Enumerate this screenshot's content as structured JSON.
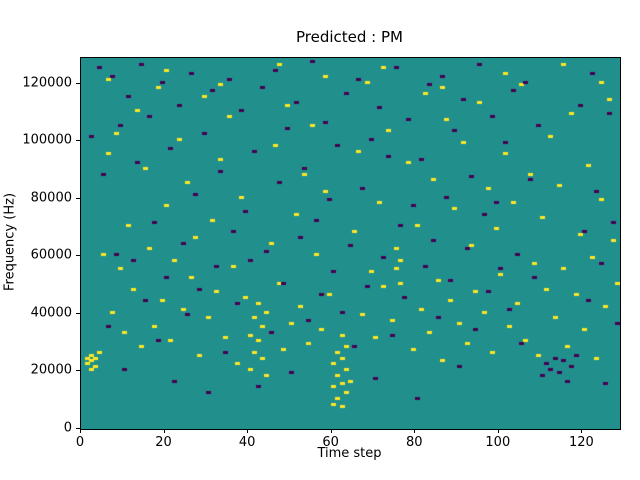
{
  "chart_data": {
    "type": "heatmap",
    "title": "Predicted : PM",
    "xlabel": "Time step",
    "ylabel": "Frequency (Hz)",
    "x_range": [
      0,
      129
    ],
    "y_range": [
      0,
      129000
    ],
    "x_ticks": [
      0,
      20,
      40,
      60,
      80,
      100,
      120
    ],
    "y_ticks": [
      0,
      20000,
      40000,
      60000,
      80000,
      100000,
      120000
    ],
    "legend": "none",
    "grid": false,
    "colors": {
      "background": "#21908c",
      "high": "#fde725",
      "low": "#440154"
    },
    "cell_size": {
      "time_steps": 1,
      "hz": 1000
    },
    "cells_yellow": [
      [
        1,
        22
      ],
      [
        2,
        23
      ],
      [
        2,
        25
      ],
      [
        3,
        21
      ],
      [
        3,
        24
      ],
      [
        4,
        26
      ],
      [
        2,
        20
      ],
      [
        1,
        24
      ],
      [
        5,
        60
      ],
      [
        6,
        95
      ],
      [
        7,
        40
      ],
      [
        8,
        102
      ],
      [
        9,
        55
      ],
      [
        10,
        33
      ],
      [
        11,
        70
      ],
      [
        12,
        48
      ],
      [
        13,
        110
      ],
      [
        14,
        28
      ],
      [
        15,
        90
      ],
      [
        16,
        62
      ],
      [
        17,
        35
      ],
      [
        18,
        118
      ],
      [
        19,
        44
      ],
      [
        20,
        77
      ],
      [
        21,
        30
      ],
      [
        22,
        58
      ],
      [
        23,
        100
      ],
      [
        24,
        41
      ],
      [
        25,
        85
      ],
      [
        26,
        52
      ],
      [
        27,
        66
      ],
      [
        28,
        25
      ],
      [
        29,
        115
      ],
      [
        30,
        38
      ],
      [
        31,
        72
      ],
      [
        32,
        47
      ],
      [
        33,
        93
      ],
      [
        34,
        31
      ],
      [
        35,
        108
      ],
      [
        36,
        56
      ],
      [
        37,
        22
      ],
      [
        38,
        80
      ],
      [
        39,
        45
      ],
      [
        40,
        20
      ],
      [
        40,
        32
      ],
      [
        41,
        26
      ],
      [
        41,
        38
      ],
      [
        42,
        30
      ],
      [
        42,
        43
      ],
      [
        43,
        24
      ],
      [
        43,
        35
      ],
      [
        44,
        40
      ],
      [
        44,
        18
      ],
      [
        45,
        64
      ],
      [
        46,
        98
      ],
      [
        47,
        50
      ],
      [
        48,
        27
      ],
      [
        49,
        112
      ],
      [
        50,
        36
      ],
      [
        51,
        74
      ],
      [
        52,
        42
      ],
      [
        53,
        88
      ],
      [
        54,
        29
      ],
      [
        55,
        105
      ],
      [
        56,
        60
      ],
      [
        57,
        34
      ],
      [
        58,
        82
      ],
      [
        59,
        46
      ],
      [
        60,
        8
      ],
      [
        60,
        14
      ],
      [
        60,
        22
      ],
      [
        61,
        10
      ],
      [
        61,
        18
      ],
      [
        61,
        26
      ],
      [
        62,
        7
      ],
      [
        62,
        15
      ],
      [
        62,
        24
      ],
      [
        62,
        32
      ],
      [
        63,
        12
      ],
      [
        63,
        20
      ],
      [
        63,
        28
      ],
      [
        64,
        16
      ],
      [
        65,
        68
      ],
      [
        66,
        96
      ],
      [
        67,
        39
      ],
      [
        68,
        120
      ],
      [
        69,
        54
      ],
      [
        70,
        31
      ],
      [
        71,
        78
      ],
      [
        72,
        49
      ],
      [
        73,
        103
      ],
      [
        74,
        37
      ],
      [
        75,
        62
      ],
      [
        75,
        55
      ],
      [
        76,
        58
      ],
      [
        76,
        50
      ],
      [
        77,
        45
      ],
      [
        78,
        92
      ],
      [
        79,
        27
      ],
      [
        80,
        70
      ],
      [
        81,
        41
      ],
      [
        82,
        116
      ],
      [
        83,
        33
      ],
      [
        84,
        86
      ],
      [
        85,
        51
      ],
      [
        86,
        23
      ],
      [
        87,
        107
      ],
      [
        88,
        44
      ],
      [
        89,
        76
      ],
      [
        90,
        36
      ],
      [
        91,
        99
      ],
      [
        92,
        29
      ],
      [
        93,
        63
      ],
      [
        94,
        47
      ],
      [
        95,
        113
      ],
      [
        96,
        40
      ],
      [
        97,
        83
      ],
      [
        98,
        26
      ],
      [
        99,
        69
      ],
      [
        100,
        53
      ],
      [
        101,
        95
      ],
      [
        102,
        35
      ],
      [
        103,
        78
      ],
      [
        104,
        43
      ],
      [
        105,
        119
      ],
      [
        106,
        30
      ],
      [
        107,
        88
      ],
      [
        108,
        57
      ],
      [
        109,
        25
      ],
      [
        110,
        73
      ],
      [
        111,
        48
      ],
      [
        112,
        101
      ],
      [
        113,
        38
      ],
      [
        114,
        84
      ],
      [
        115,
        55
      ],
      [
        116,
        28
      ],
      [
        117,
        109
      ],
      [
        118,
        46
      ],
      [
        119,
        67
      ],
      [
        120,
        34
      ],
      [
        121,
        91
      ],
      [
        122,
        59
      ],
      [
        123,
        24
      ],
      [
        124,
        79
      ],
      [
        125,
        42
      ],
      [
        126,
        114
      ],
      [
        127,
        65
      ],
      [
        128,
        50
      ],
      [
        6,
        121
      ],
      [
        20,
        124
      ],
      [
        33,
        119
      ],
      [
        47,
        126
      ],
      [
        58,
        122
      ],
      [
        72,
        125
      ],
      [
        86,
        118
      ],
      [
        101,
        123
      ],
      [
        115,
        126
      ],
      [
        124,
        120
      ]
    ],
    "cells_dark": [
      [
        2,
        101
      ],
      [
        4,
        125
      ],
      [
        5,
        88
      ],
      [
        6,
        35
      ],
      [
        7,
        122
      ],
      [
        8,
        60
      ],
      [
        9,
        105
      ],
      [
        10,
        20
      ],
      [
        11,
        115
      ],
      [
        12,
        58
      ],
      [
        13,
        92
      ],
      [
        14,
        126
      ],
      [
        15,
        44
      ],
      [
        16,
        108
      ],
      [
        17,
        71
      ],
      [
        18,
        30
      ],
      [
        19,
        120
      ],
      [
        20,
        52
      ],
      [
        21,
        97
      ],
      [
        22,
        16
      ],
      [
        23,
        112
      ],
      [
        24,
        64
      ],
      [
        25,
        39
      ],
      [
        26,
        123
      ],
      [
        27,
        81
      ],
      [
        28,
        48
      ],
      [
        29,
        102
      ],
      [
        30,
        12
      ],
      [
        31,
        117
      ],
      [
        32,
        56
      ],
      [
        33,
        89
      ],
      [
        34,
        26
      ],
      [
        35,
        121
      ],
      [
        36,
        68
      ],
      [
        37,
        43
      ],
      [
        38,
        110
      ],
      [
        39,
        75
      ],
      [
        40,
        58
      ],
      [
        41,
        96
      ],
      [
        42,
        14
      ],
      [
        43,
        118
      ],
      [
        44,
        61
      ],
      [
        45,
        33
      ],
      [
        46,
        124
      ],
      [
        47,
        85
      ],
      [
        48,
        50
      ],
      [
        49,
        104
      ],
      [
        50,
        19
      ],
      [
        51,
        113
      ],
      [
        52,
        66
      ],
      [
        53,
        90
      ],
      [
        54,
        37
      ],
      [
        55,
        127
      ],
      [
        56,
        72
      ],
      [
        57,
        46
      ],
      [
        58,
        106
      ],
      [
        59,
        79
      ],
      [
        60,
        54
      ],
      [
        61,
        98
      ],
      [
        62,
        40
      ],
      [
        63,
        116
      ],
      [
        64,
        63
      ],
      [
        65,
        28
      ],
      [
        66,
        121
      ],
      [
        67,
        83
      ],
      [
        68,
        49
      ],
      [
        69,
        100
      ],
      [
        70,
        17
      ],
      [
        71,
        111
      ],
      [
        72,
        59
      ],
      [
        73,
        94
      ],
      [
        74,
        32
      ],
      [
        75,
        125
      ],
      [
        76,
        70
      ],
      [
        77,
        45
      ],
      [
        78,
        107
      ],
      [
        79,
        77
      ],
      [
        80,
        10
      ],
      [
        81,
        93
      ],
      [
        82,
        56
      ],
      [
        83,
        119
      ],
      [
        84,
        65
      ],
      [
        85,
        38
      ],
      [
        86,
        122
      ],
      [
        87,
        80
      ],
      [
        88,
        51
      ],
      [
        89,
        103
      ],
      [
        90,
        21
      ],
      [
        91,
        114
      ],
      [
        92,
        62
      ],
      [
        93,
        87
      ],
      [
        94,
        34
      ],
      [
        95,
        126
      ],
      [
        96,
        74
      ],
      [
        97,
        47
      ],
      [
        98,
        108
      ],
      [
        99,
        78
      ],
      [
        100,
        55
      ],
      [
        101,
        99
      ],
      [
        102,
        41
      ],
      [
        103,
        117
      ],
      [
        104,
        60
      ],
      [
        105,
        29
      ],
      [
        106,
        120
      ],
      [
        107,
        86
      ],
      [
        108,
        52
      ],
      [
        109,
        105
      ],
      [
        110,
        18
      ],
      [
        111,
        22
      ],
      [
        112,
        20
      ],
      [
        113,
        24
      ],
      [
        114,
        19
      ],
      [
        115,
        23
      ],
      [
        116,
        16
      ],
      [
        117,
        21
      ],
      [
        118,
        25
      ],
      [
        119,
        112
      ],
      [
        120,
        68
      ],
      [
        121,
        44
      ],
      [
        122,
        123
      ],
      [
        123,
        82
      ],
      [
        124,
        57
      ],
      [
        125,
        15
      ],
      [
        126,
        109
      ],
      [
        127,
        71
      ],
      [
        128,
        36
      ]
    ]
  }
}
